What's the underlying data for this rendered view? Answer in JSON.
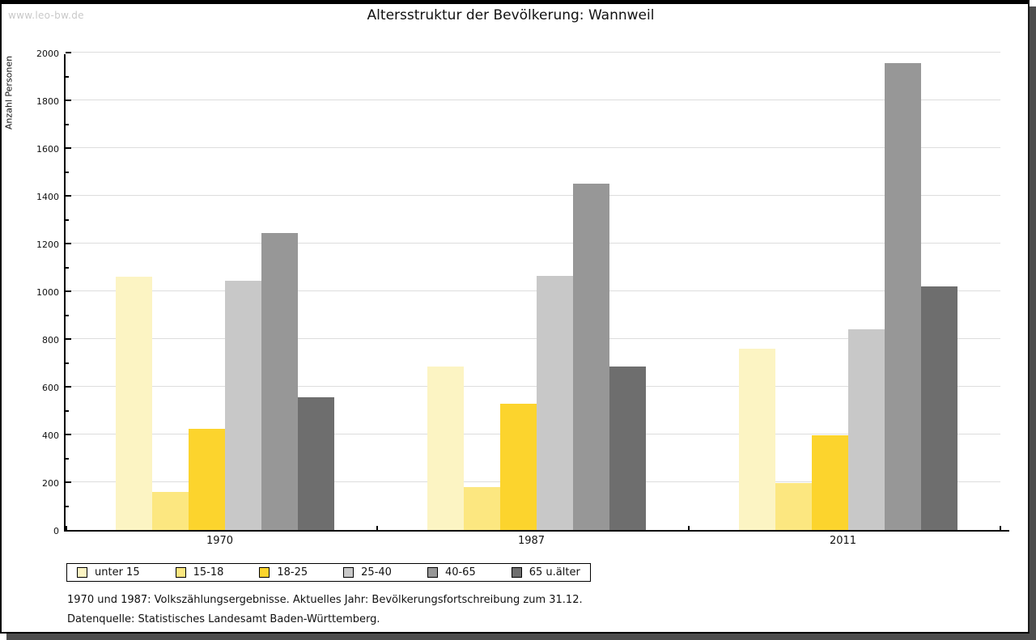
{
  "page": {
    "watermark": "www.leo-bw.de"
  },
  "chart_data": {
    "type": "bar",
    "title": "Altersstruktur der Bevölkerung: Wannweil",
    "xlabel": "",
    "ylabel": "Anzahl Personen",
    "categories": [
      "1970",
      "1987",
      "2011"
    ],
    "series": [
      {
        "name": "unter 15",
        "color": "#FCF4C3",
        "values": [
          1060,
          685,
          760
        ]
      },
      {
        "name": "15-18",
        "color": "#FCE780",
        "values": [
          160,
          180,
          195
        ]
      },
      {
        "name": "18-25",
        "color": "#FCD42D",
        "values": [
          425,
          530,
          395
        ]
      },
      {
        "name": "25-40",
        "color": "#C8C8C8",
        "values": [
          1045,
          1065,
          840
        ]
      },
      {
        "name": "40-65",
        "color": "#979797",
        "values": [
          1245,
          1450,
          1955
        ]
      },
      {
        "name": "65 u.älter",
        "color": "#6E6E6E",
        "values": [
          555,
          685,
          1020
        ]
      }
    ],
    "ylim": [
      0,
      2000
    ],
    "y_major_step": 200,
    "y_minor_step": 100,
    "grid": true,
    "legend_position": "bottom-left"
  },
  "footer": {
    "line1": "1970 und 1987: Volkszählungsergebnisse. Aktuelles Jahr: Bevölkerungsfortschreibung zum 31.12.",
    "line2": "Datenquelle: Statistisches Landesamt Baden-Württemberg."
  }
}
